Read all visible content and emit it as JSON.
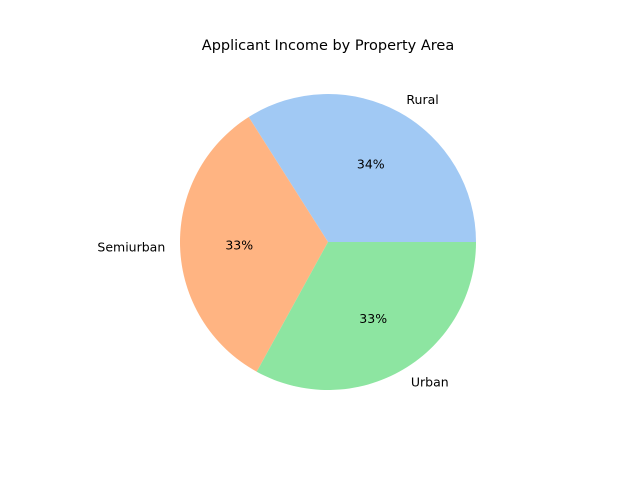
{
  "chart_data": {
    "type": "pie",
    "title": "Applicant Income by Property Area",
    "categories": [
      "Rural",
      "Semiurban",
      "Urban"
    ],
    "values": [
      34,
      33,
      33
    ],
    "percent_labels": [
      "34%",
      "33%",
      "33%"
    ],
    "colors": [
      "#a1c9f4",
      "#ffb482",
      "#8de5a1"
    ],
    "start_angle_deg": 0,
    "direction": "counterclockwise"
  }
}
